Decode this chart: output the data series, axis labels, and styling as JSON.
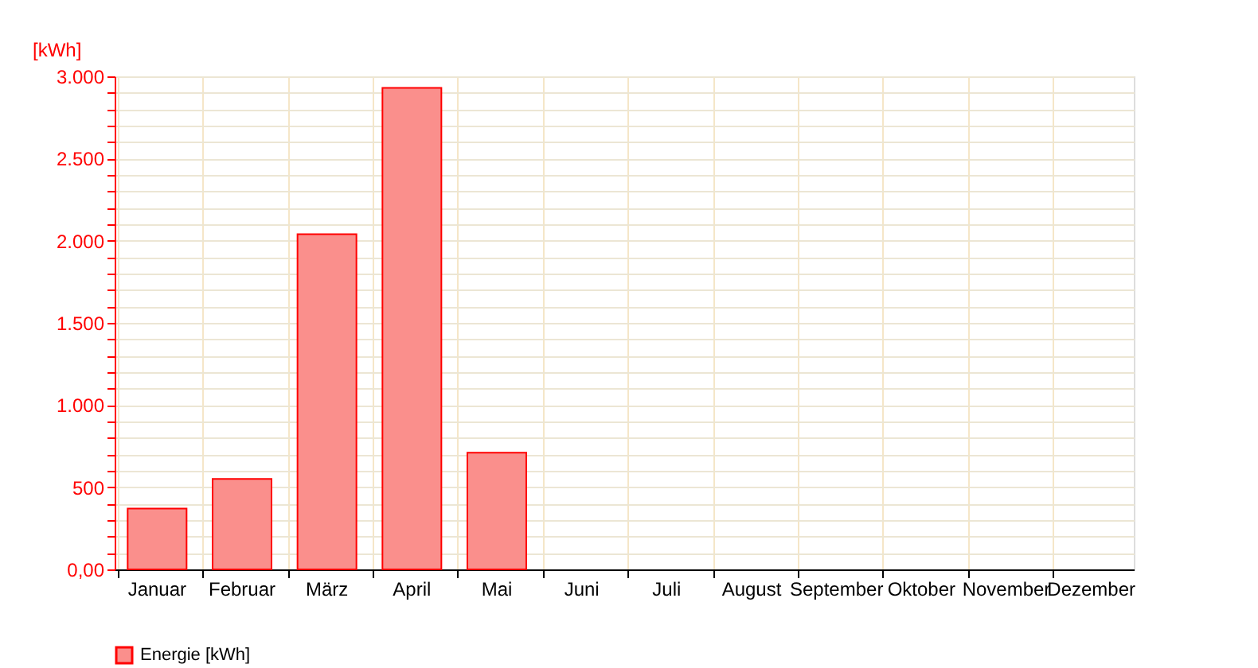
{
  "chart_data": {
    "type": "bar",
    "ylabel": "[kWh]",
    "categories": [
      "Januar",
      "Februar",
      "März",
      "April",
      "Mai",
      "Juni",
      "Juli",
      "August",
      "September",
      "Oktober",
      "November",
      "Dezember"
    ],
    "series": [
      {
        "name": "Energie [kWh]",
        "color": "#fa8f8c",
        "values": [
          370,
          550,
          2040,
          2930,
          710,
          null,
          null,
          null,
          null,
          null,
          null,
          null
        ]
      }
    ],
    "ylim": [
      0,
      3000
    ],
    "yticks": [
      {
        "value": 0,
        "label": "0,00"
      },
      {
        "value": 100,
        "label": null
      },
      {
        "value": 200,
        "label": null
      },
      {
        "value": 300,
        "label": null
      },
      {
        "value": 400,
        "label": null
      },
      500,
      {
        "value": 600,
        "label": null
      },
      {
        "value": 700,
        "label": null
      },
      {
        "value": 800,
        "label": null
      },
      {
        "value": 900,
        "label": null
      },
      {
        "value": 1000,
        "label": "1.000"
      },
      {
        "value": 1100,
        "label": null
      },
      {
        "value": 1200,
        "label": null
      },
      {
        "value": 1300,
        "label": null
      },
      {
        "value": 1400,
        "label": null
      },
      {
        "value": 1500,
        "label": "1.500"
      },
      {
        "value": 1600,
        "label": null
      },
      {
        "value": 1700,
        "label": null
      },
      {
        "value": 1800,
        "label": null
      },
      {
        "value": 1900,
        "label": null
      },
      {
        "value": 2000,
        "label": "2.000"
      },
      {
        "value": 2100,
        "label": null
      },
      {
        "value": 2200,
        "label": null
      },
      {
        "value": 2300,
        "label": null
      },
      {
        "value": 2400,
        "label": null
      },
      {
        "value": 2500,
        "label": "2.500"
      },
      {
        "value": 2600,
        "label": null
      },
      {
        "value": 2700,
        "label": null
      },
      {
        "value": 2800,
        "label": null
      },
      {
        "value": 2900,
        "label": null
      },
      {
        "value": 3000,
        "label": "3.000"
      }
    ],
    "grid": true,
    "legend": "bottom left"
  }
}
